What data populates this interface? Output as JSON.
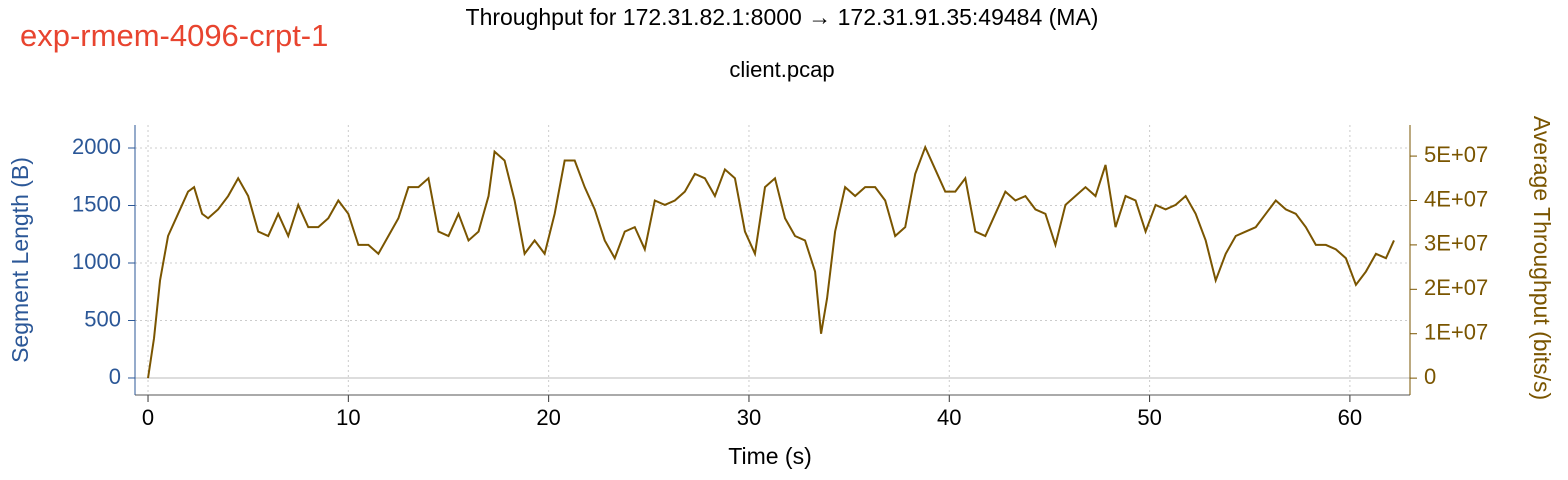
{
  "chart_data": {
    "type": "line",
    "annotation": "exp-rmem-4096-crpt-1",
    "title": "Throughput for 172.31.82.1:8000 → 172.31.91.35:49484 (MA)",
    "subtitle": "client.pcap",
    "x_label": "Time (s)",
    "y_label": "Segment Length (B)",
    "y2_label": "Average Throughput (bits/s)",
    "grid": true,
    "xlim": [
      -0.65,
      63
    ],
    "xticks": [
      0,
      10,
      20,
      30,
      40,
      50,
      60
    ],
    "ylim": [
      -148,
      2200
    ],
    "yticks": [
      0,
      500,
      1000,
      1500,
      2000
    ],
    "y2lim": [
      -3800000,
      57000000
    ],
    "y2ticks": [
      0,
      {
        "value": 10000000,
        "label": "1E+07"
      },
      {
        "value": 20000000,
        "label": "2E+07"
      },
      {
        "value": 30000000,
        "label": "3E+07"
      },
      {
        "value": 40000000,
        "label": "4E+07"
      },
      {
        "value": 50000000,
        "label": "5E+07"
      }
    ],
    "x": [
      0,
      0.3,
      0.6,
      1,
      1.5,
      2,
      2.3,
      2.7,
      3,
      3.5,
      4,
      4.5,
      5,
      5.5,
      6,
      6.5,
      7,
      7.5,
      8,
      8.5,
      9,
      9.5,
      10,
      10.5,
      11,
      11.5,
      12,
      12.5,
      13,
      13.5,
      14,
      14.5,
      15,
      15.5,
      16,
      16.5,
      17,
      17.3,
      17.8,
      18.3,
      18.8,
      19.3,
      19.8,
      20.3,
      20.8,
      21.3,
      21.8,
      22.3,
      22.8,
      23.3,
      23.8,
      24.3,
      24.8,
      25.3,
      25.8,
      26.3,
      26.8,
      27.3,
      27.8,
      28.3,
      28.8,
      29.3,
      29.8,
      30.3,
      30.8,
      31.3,
      31.8,
      32.3,
      32.8,
      33.3,
      33.6,
      33.9,
      34.3,
      34.8,
      35.3,
      35.8,
      36.3,
      36.8,
      37.3,
      37.8,
      38.3,
      38.8,
      39.3,
      39.8,
      40.3,
      40.8,
      41.3,
      41.8,
      42.3,
      42.8,
      43.3,
      43.8,
      44.3,
      44.8,
      45.3,
      45.8,
      46.3,
      46.8,
      47.3,
      47.8,
      48.3,
      48.8,
      49.3,
      49.8,
      50.3,
      50.8,
      51.3,
      51.8,
      52.3,
      52.8,
      53.3,
      53.8,
      54.3,
      54.8,
      55.3,
      55.8,
      56.3,
      56.8,
      57.3,
      57.8,
      58.3,
      58.8,
      59.3,
      59.8,
      60.3,
      60.8,
      61.3,
      61.8,
      62.2
    ],
    "series": [
      {
        "color": "#7a5500",
        "axis": "y2",
        "values": [
          0,
          9000000,
          22000000,
          32000000,
          37000000,
          42000000,
          43000000,
          37000000,
          36000000,
          38000000,
          41000000,
          45000000,
          41000000,
          33000000,
          32000000,
          37000000,
          32000000,
          39000000,
          34000000,
          34000000,
          36000000,
          40000000,
          37000000,
          30000000,
          30000000,
          28000000,
          32000000,
          36000000,
          43000000,
          43000000,
          45000000,
          33000000,
          32000000,
          37000000,
          31000000,
          33000000,
          41000000,
          51000000,
          49000000,
          40000000,
          28000000,
          31000000,
          28000000,
          37000000,
          49000000,
          49000000,
          43000000,
          38000000,
          31000000,
          27000000,
          33000000,
          34000000,
          29000000,
          40000000,
          39000000,
          40000000,
          42000000,
          46000000,
          45000000,
          41000000,
          47000000,
          45000000,
          33000000,
          28000000,
          43000000,
          45000000,
          36000000,
          32000000,
          31000000,
          24000000,
          10000000,
          18000000,
          33000000,
          43000000,
          41000000,
          43000000,
          43000000,
          40000000,
          32000000,
          34000000,
          46000000,
          52000000,
          47000000,
          42000000,
          42000000,
          45000000,
          33000000,
          32000000,
          37000000,
          42000000,
          40000000,
          41000000,
          38000000,
          37000000,
          30000000,
          39000000,
          41000000,
          43000000,
          41000000,
          48000000,
          34000000,
          41000000,
          40000000,
          33000000,
          39000000,
          38000000,
          39000000,
          41000000,
          37000000,
          31000000,
          22000000,
          28000000,
          32000000,
          33000000,
          34000000,
          37000000,
          40000000,
          38000000,
          37000000,
          34000000,
          30000000,
          30000000,
          29000000,
          27000000,
          21000000,
          24000000,
          28000000,
          27000000,
          31000000
        ]
      }
    ],
    "colors": {
      "annotation": "#e8442f",
      "y_axis": "#2b5797",
      "y2_axis": "#7a5500"
    }
  }
}
